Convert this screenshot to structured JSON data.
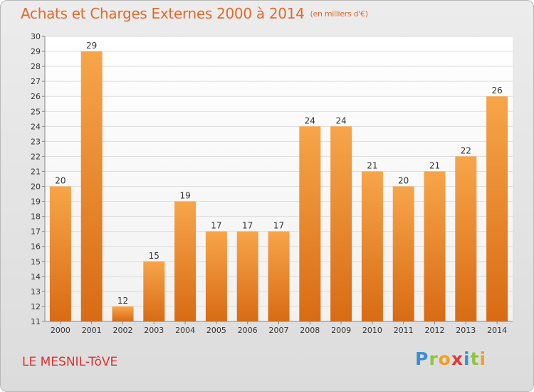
{
  "header": {
    "title": "Achats et Charges Externes 2000 à 2014",
    "unit": "(en milliers d'€)"
  },
  "footer": {
    "commune": "LE MESNIL-TôVE",
    "logo": {
      "letters": [
        "P",
        "r",
        "o",
        "x",
        "i",
        "t",
        "i"
      ],
      "colors": [
        "#3a8ed8",
        "#8cc63f",
        "#f0a020",
        "#e03a3a",
        "#3a8ed8",
        "#8cc63f",
        "#f0a020"
      ]
    }
  },
  "chart_data": {
    "type": "bar",
    "title": "Achats et Charges Externes 2000 à 2014",
    "subtitle": "(en milliers d'€)",
    "xlabel": "",
    "ylabel": "",
    "categories": [
      "2000",
      "2001",
      "2002",
      "2003",
      "2004",
      "2005",
      "2006",
      "2007",
      "2008",
      "2009",
      "2010",
      "2011",
      "2012",
      "2013",
      "2014"
    ],
    "values": [
      20,
      29,
      12,
      15,
      19,
      17,
      17,
      17,
      24,
      24,
      21,
      20,
      21,
      22,
      26
    ],
    "ylim": [
      11,
      30
    ],
    "yticks": [
      11,
      12,
      13,
      14,
      15,
      16,
      17,
      18,
      19,
      20,
      21,
      22,
      23,
      24,
      25,
      26,
      27,
      28,
      29,
      30
    ],
    "grid": true,
    "bar_color_top": "#f7a54a",
    "bar_color_bottom": "#d86b14",
    "label_color": "#333333"
  }
}
